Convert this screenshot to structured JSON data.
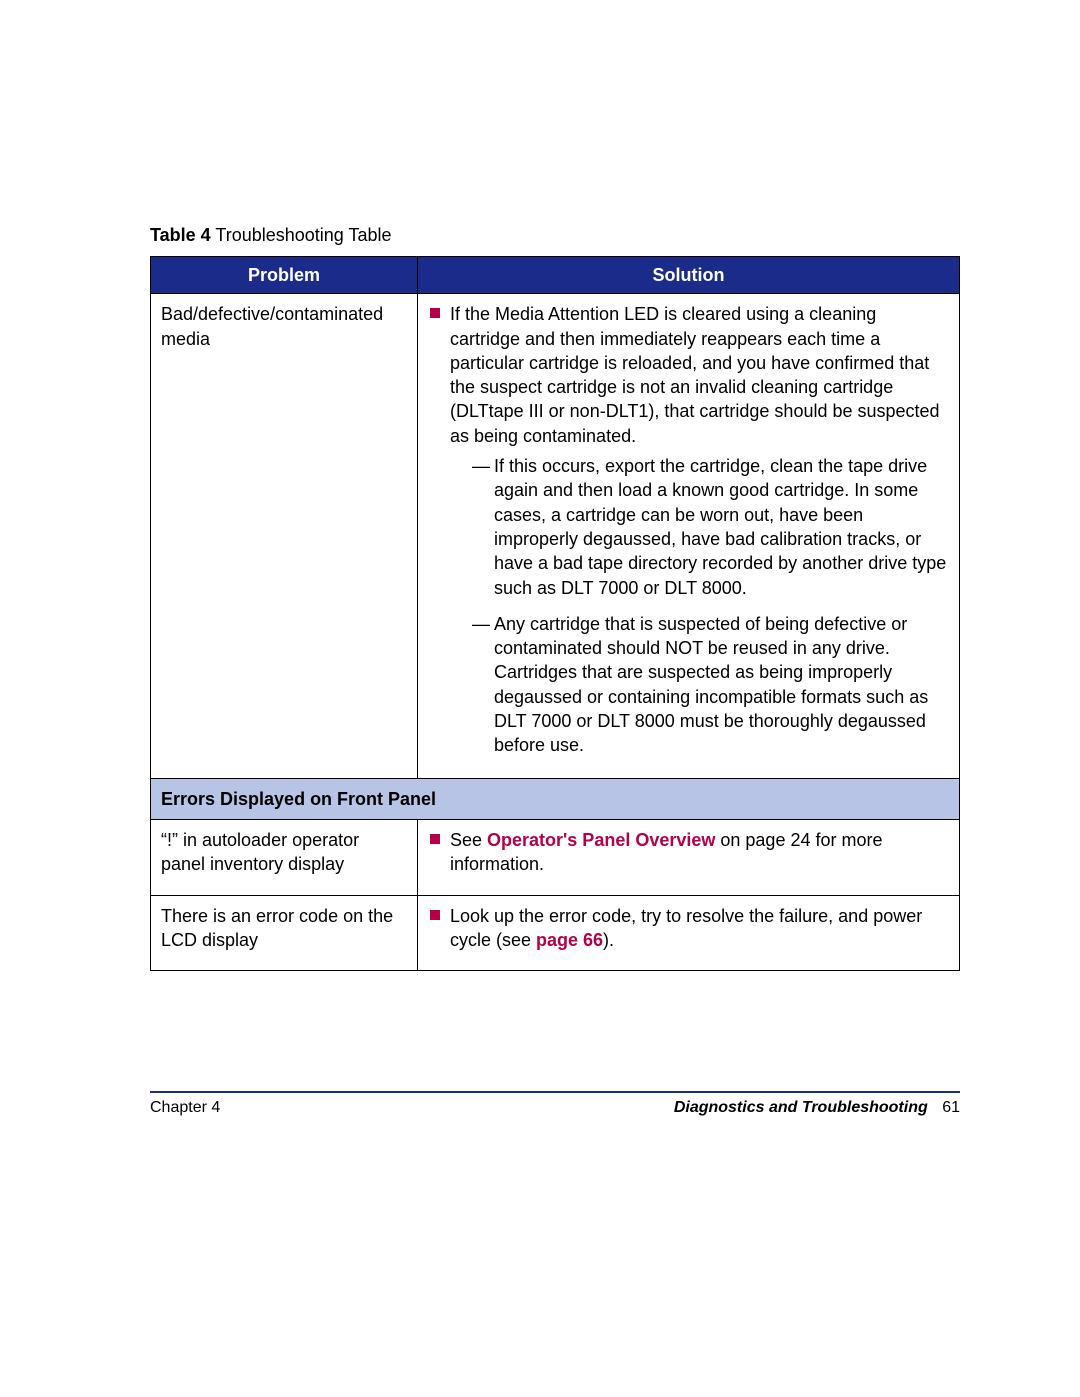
{
  "caption": {
    "label": "Table 4",
    "title": "Troubleshooting Table"
  },
  "headers": {
    "problem": "Problem",
    "solution": "Solution"
  },
  "row1": {
    "problem": "Bad/defective/contaminated media",
    "bullet1": "If the Media Attention LED is cleared using a cleaning cartridge and then immediately reappears each time a particular cartridge is reloaded, and you have confirmed that the suspect cartridge is not an invalid cleaning cartridge (DLTtape III or non-DLT1), that cartridge should be suspected as being contaminated.",
    "dash1": "If this occurs, export the cartridge, clean the tape drive again and then load a known good cartridge. In some cases, a cartridge can be worn out, have been improperly degaussed, have bad calibration tracks, or have a bad tape directory recorded by another drive type such as DLT 7000 or DLT 8000.",
    "dash2": "Any cartridge that is suspected of being defective or contaminated should NOT be reused in any drive. Cartridges that are suspected as being improperly degaussed or containing incompatible formats such as DLT 7000 or DLT 8000 must be thoroughly degaussed before use."
  },
  "section": {
    "title": "Errors Displayed on Front Panel"
  },
  "row2": {
    "problem": "“!” in autoloader operator panel inventory display",
    "pre": "See ",
    "link": "Operator's Panel Overview",
    "post": " on page 24 for more information."
  },
  "row3": {
    "problem": "There is an error code on the LCD display",
    "pre": "Look up the error code, try to resolve the failure, and power cycle (see ",
    "link": "page 66",
    "post": ")."
  },
  "footer": {
    "chapter": "Chapter 4",
    "section": "Diagnostics and Troubleshooting",
    "pageno": "61"
  },
  "colors": {
    "header_bg": "#1a2b8a",
    "header_fg": "#ffffff",
    "section_bg": "#b8c4e6",
    "bullet": "#b30047",
    "link": "#b30047",
    "rule": "#1a2b8a"
  }
}
